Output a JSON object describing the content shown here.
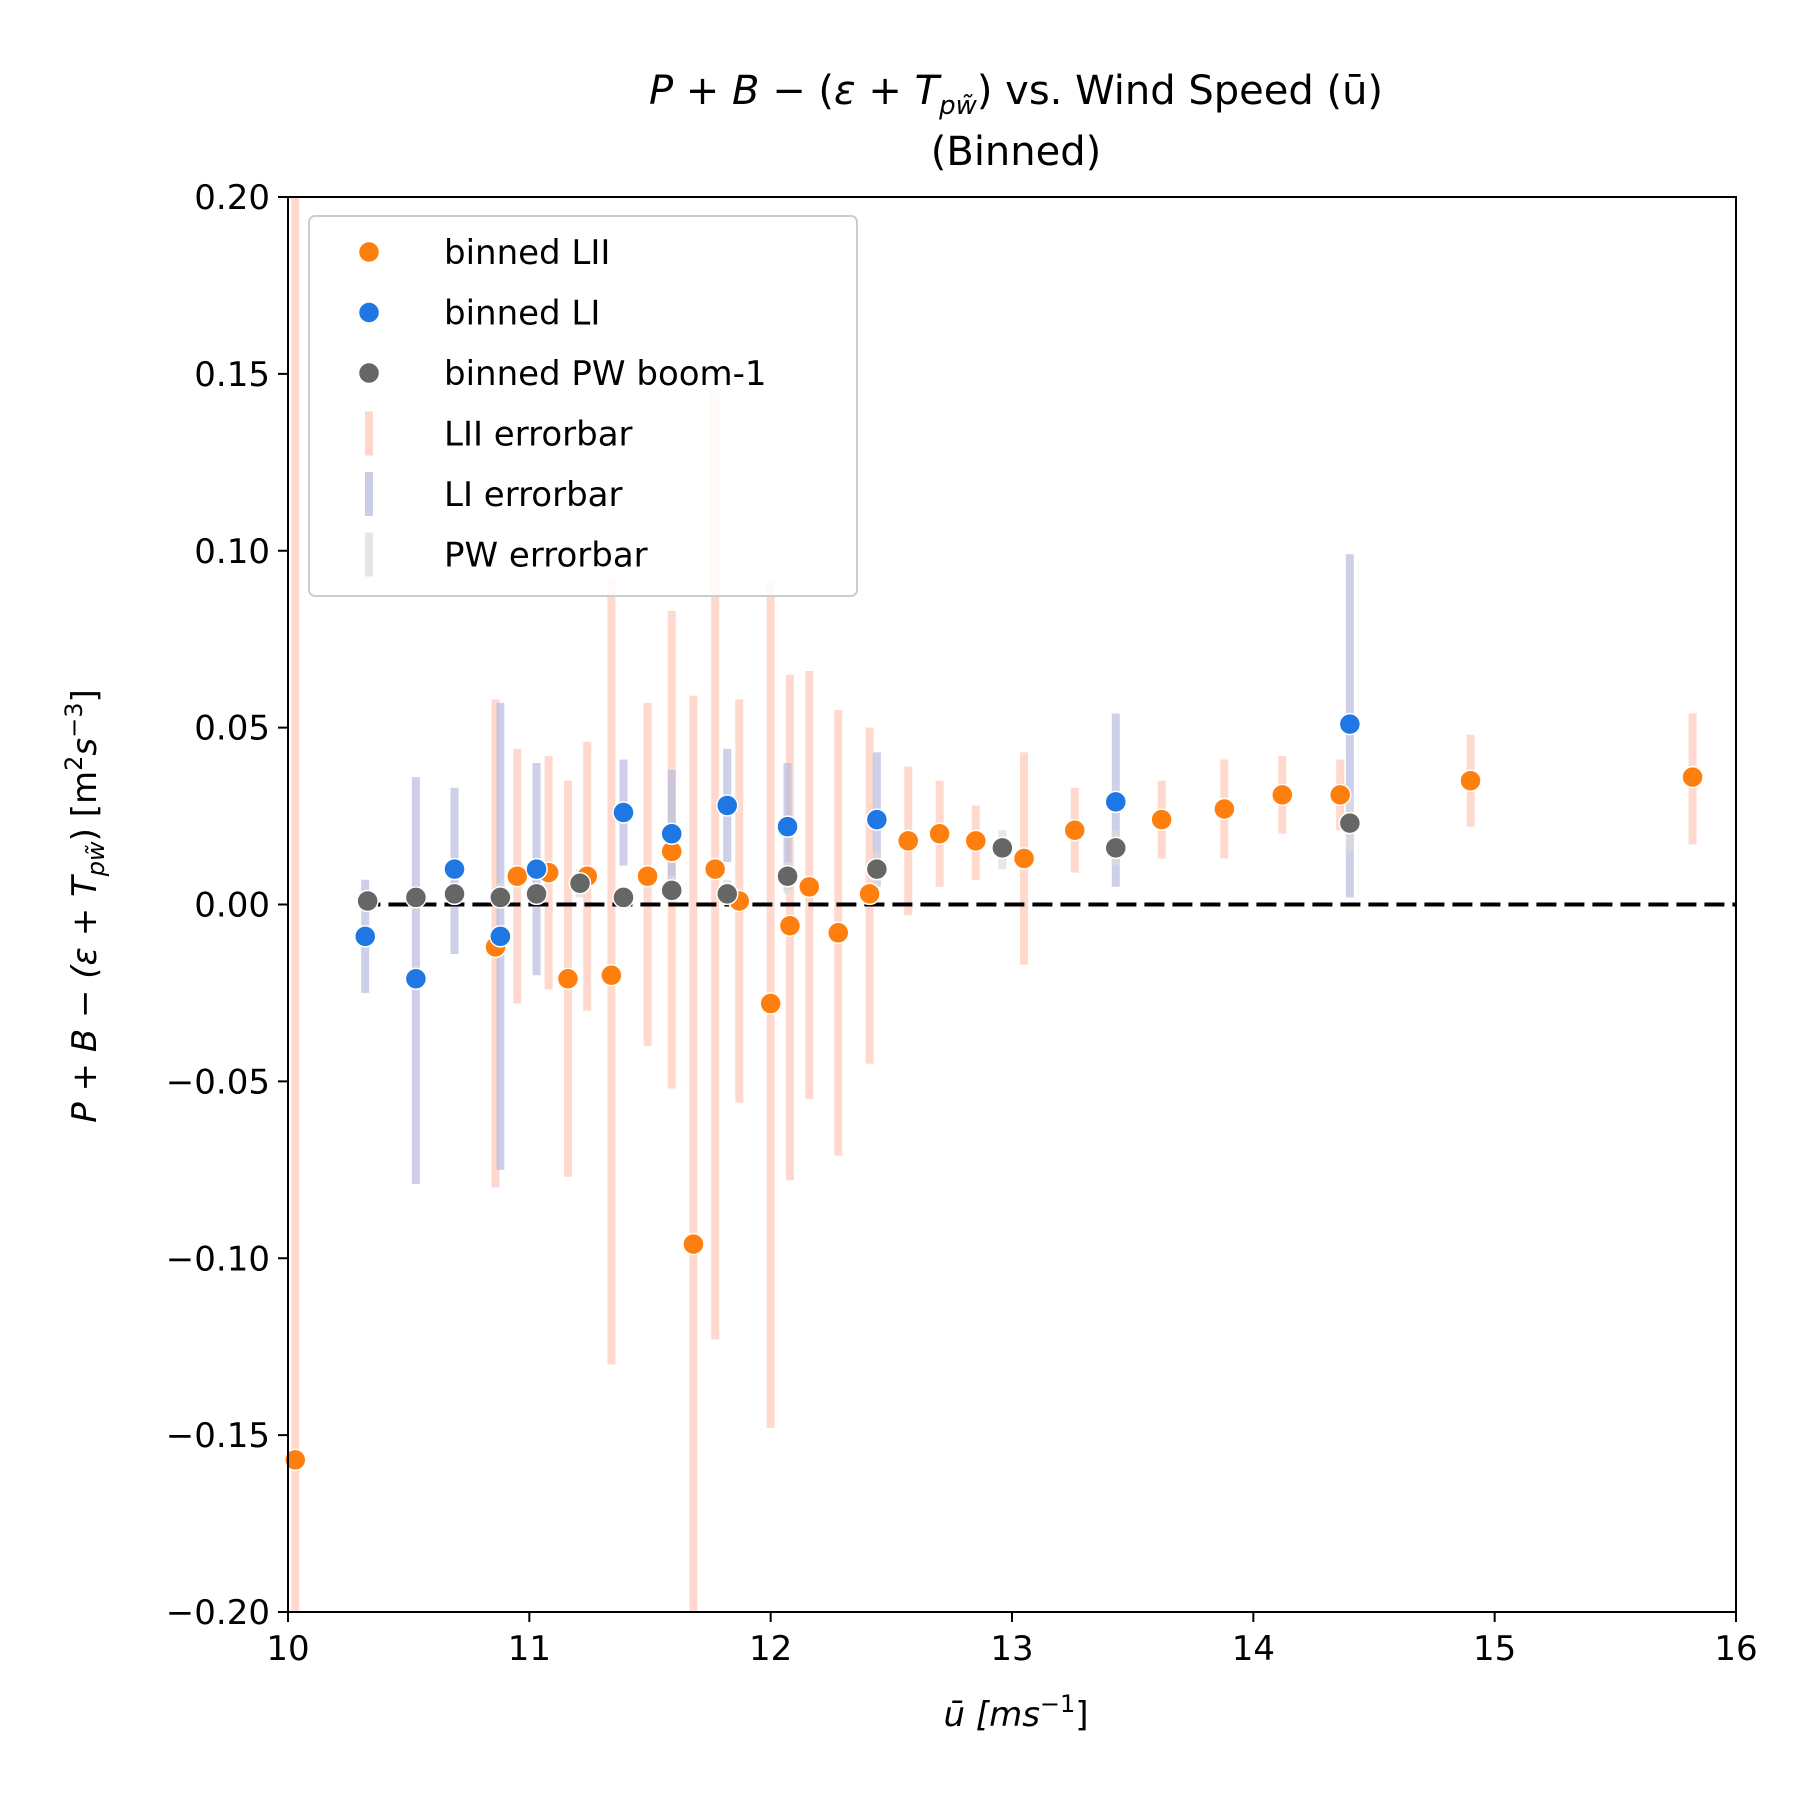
{
  "chart_data": {
    "type": "scatter",
    "title": {
      "line1": {
        "p": "P",
        "plus1": " + ",
        "b": "B",
        "minus": " − (",
        "eps": "ε",
        "plus2": " + ",
        "t": "T",
        "sub": "pw̃",
        "close": ")",
        "tail": " vs. Wind Speed (ū)"
      },
      "line2": "(Binned)"
    },
    "xlabel": {
      "base": "ū [",
      "m": "m",
      "s": "s",
      "exp": "−1",
      "close": "]"
    },
    "ylabel": {
      "lhs": "P + B − (ε + T",
      "sub": "pw̃",
      "mid": ") [m",
      "exp1": "2",
      "mid2": "s",
      "exp2": "−3",
      "close": "]"
    },
    "xlim": [
      10,
      16
    ],
    "ylim": [
      -0.2,
      0.2
    ],
    "xticks": [
      10,
      11,
      12,
      13,
      14,
      15,
      16
    ],
    "yticks": [
      -0.2,
      -0.15,
      -0.1,
      -0.05,
      0.0,
      0.05,
      0.1,
      0.15,
      0.2
    ],
    "ytick_labels": [
      "−0.20",
      "−0.15",
      "−0.10",
      "−0.05",
      "0.00",
      "0.05",
      "0.10",
      "0.15",
      "0.20"
    ],
    "grid": false,
    "hline": 0,
    "legend_position": "top-left",
    "series": [
      {
        "name": "binned LII",
        "color": "#ff7f0e",
        "err_name": "LII errorbar",
        "err_color": "#ffc9b8",
        "points": [
          {
            "x": 10.03,
            "y": -0.157,
            "lo": -0.2,
            "hi": 0.2
          },
          {
            "x": 10.86,
            "y": -0.012,
            "lo": -0.08,
            "hi": 0.058
          },
          {
            "x": 10.95,
            "y": 0.008,
            "lo": -0.028,
            "hi": 0.044
          },
          {
            "x": 11.08,
            "y": 0.009,
            "lo": -0.024,
            "hi": 0.042
          },
          {
            "x": 11.16,
            "y": -0.021,
            "lo": -0.077,
            "hi": 0.035
          },
          {
            "x": 11.24,
            "y": 0.008,
            "lo": -0.03,
            "hi": 0.046
          },
          {
            "x": 11.34,
            "y": -0.02,
            "lo": -0.13,
            "hi": 0.092
          },
          {
            "x": 11.49,
            "y": 0.008,
            "lo": -0.04,
            "hi": 0.057
          },
          {
            "x": 11.59,
            "y": 0.015,
            "lo": -0.052,
            "hi": 0.083
          },
          {
            "x": 11.68,
            "y": -0.096,
            "lo": -0.2,
            "hi": 0.059
          },
          {
            "x": 11.77,
            "y": 0.01,
            "lo": -0.123,
            "hi": 0.145
          },
          {
            "x": 11.87,
            "y": 0.001,
            "lo": -0.056,
            "hi": 0.058
          },
          {
            "x": 12.0,
            "y": -0.028,
            "lo": -0.148,
            "hi": 0.091
          },
          {
            "x": 12.08,
            "y": -0.006,
            "lo": -0.078,
            "hi": 0.065
          },
          {
            "x": 12.16,
            "y": 0.005,
            "lo": -0.055,
            "hi": 0.066
          },
          {
            "x": 12.28,
            "y": -0.008,
            "lo": -0.071,
            "hi": 0.055
          },
          {
            "x": 12.41,
            "y": 0.003,
            "lo": -0.045,
            "hi": 0.05
          },
          {
            "x": 12.57,
            "y": 0.018,
            "lo": -0.003,
            "hi": 0.039
          },
          {
            "x": 12.7,
            "y": 0.02,
            "lo": 0.005,
            "hi": 0.035
          },
          {
            "x": 12.85,
            "y": 0.018,
            "lo": 0.007,
            "hi": 0.028
          },
          {
            "x": 13.05,
            "y": 0.013,
            "lo": -0.017,
            "hi": 0.043
          },
          {
            "x": 13.26,
            "y": 0.021,
            "lo": 0.009,
            "hi": 0.033
          },
          {
            "x": 13.62,
            "y": 0.024,
            "lo": 0.013,
            "hi": 0.035
          },
          {
            "x": 13.88,
            "y": 0.027,
            "lo": 0.013,
            "hi": 0.041
          },
          {
            "x": 14.12,
            "y": 0.031,
            "lo": 0.02,
            "hi": 0.042
          },
          {
            "x": 14.36,
            "y": 0.031,
            "lo": 0.021,
            "hi": 0.041
          },
          {
            "x": 14.9,
            "y": 0.035,
            "lo": 0.022,
            "hi": 0.048
          },
          {
            "x": 15.82,
            "y": 0.036,
            "lo": 0.017,
            "hi": 0.054
          }
        ]
      },
      {
        "name": "binned LI",
        "color": "#1f77e4",
        "err_name": "LI errorbar",
        "err_color": "#b8bcde",
        "points": [
          {
            "x": 10.32,
            "y": -0.009,
            "lo": -0.025,
            "hi": 0.007
          },
          {
            "x": 10.53,
            "y": -0.021,
            "lo": -0.079,
            "hi": 0.036
          },
          {
            "x": 10.69,
            "y": 0.01,
            "lo": -0.014,
            "hi": 0.033
          },
          {
            "x": 10.88,
            "y": -0.009,
            "lo": -0.075,
            "hi": 0.057
          },
          {
            "x": 11.03,
            "y": 0.01,
            "lo": -0.02,
            "hi": 0.04
          },
          {
            "x": 11.39,
            "y": 0.026,
            "lo": 0.011,
            "hi": 0.041
          },
          {
            "x": 11.59,
            "y": 0.02,
            "lo": 0.002,
            "hi": 0.038
          },
          {
            "x": 11.82,
            "y": 0.028,
            "lo": 0.012,
            "hi": 0.044
          },
          {
            "x": 12.07,
            "y": 0.022,
            "lo": 0.004,
            "hi": 0.04
          },
          {
            "x": 12.44,
            "y": 0.024,
            "lo": 0.005,
            "hi": 0.043
          },
          {
            "x": 13.43,
            "y": 0.029,
            "lo": 0.005,
            "hi": 0.054
          },
          {
            "x": 14.4,
            "y": 0.051,
            "lo": 0.002,
            "hi": 0.099
          }
        ]
      },
      {
        "name": "binned PW boom-1",
        "color": "#666666",
        "err_name": "PW errorbar",
        "err_color": "#dddddd",
        "points": [
          {
            "x": 10.33,
            "y": 0.001,
            "lo": -0.001,
            "hi": 0.004
          },
          {
            "x": 10.53,
            "y": 0.002,
            "lo": -0.001,
            "hi": 0.005
          },
          {
            "x": 10.69,
            "y": 0.003,
            "lo": 0.0,
            "hi": 0.006
          },
          {
            "x": 10.88,
            "y": 0.002,
            "lo": -0.001,
            "hi": 0.006
          },
          {
            "x": 11.03,
            "y": 0.003,
            "lo": -0.001,
            "hi": 0.006
          },
          {
            "x": 11.21,
            "y": 0.006,
            "lo": 0.002,
            "hi": 0.01
          },
          {
            "x": 11.39,
            "y": 0.002,
            "lo": -0.001,
            "hi": 0.005
          },
          {
            "x": 11.59,
            "y": 0.004,
            "lo": 0.0,
            "hi": 0.008
          },
          {
            "x": 11.82,
            "y": 0.003,
            "lo": 0.0,
            "hi": 0.007
          },
          {
            "x": 12.07,
            "y": 0.008,
            "lo": 0.003,
            "hi": 0.012
          },
          {
            "x": 12.44,
            "y": 0.01,
            "lo": 0.005,
            "hi": 0.015
          },
          {
            "x": 12.96,
            "y": 0.016,
            "lo": 0.01,
            "hi": 0.021
          },
          {
            "x": 13.43,
            "y": 0.016,
            "lo": 0.011,
            "hi": 0.021
          },
          {
            "x": 14.4,
            "y": 0.023,
            "lo": 0.015,
            "hi": 0.031
          }
        ]
      }
    ]
  }
}
